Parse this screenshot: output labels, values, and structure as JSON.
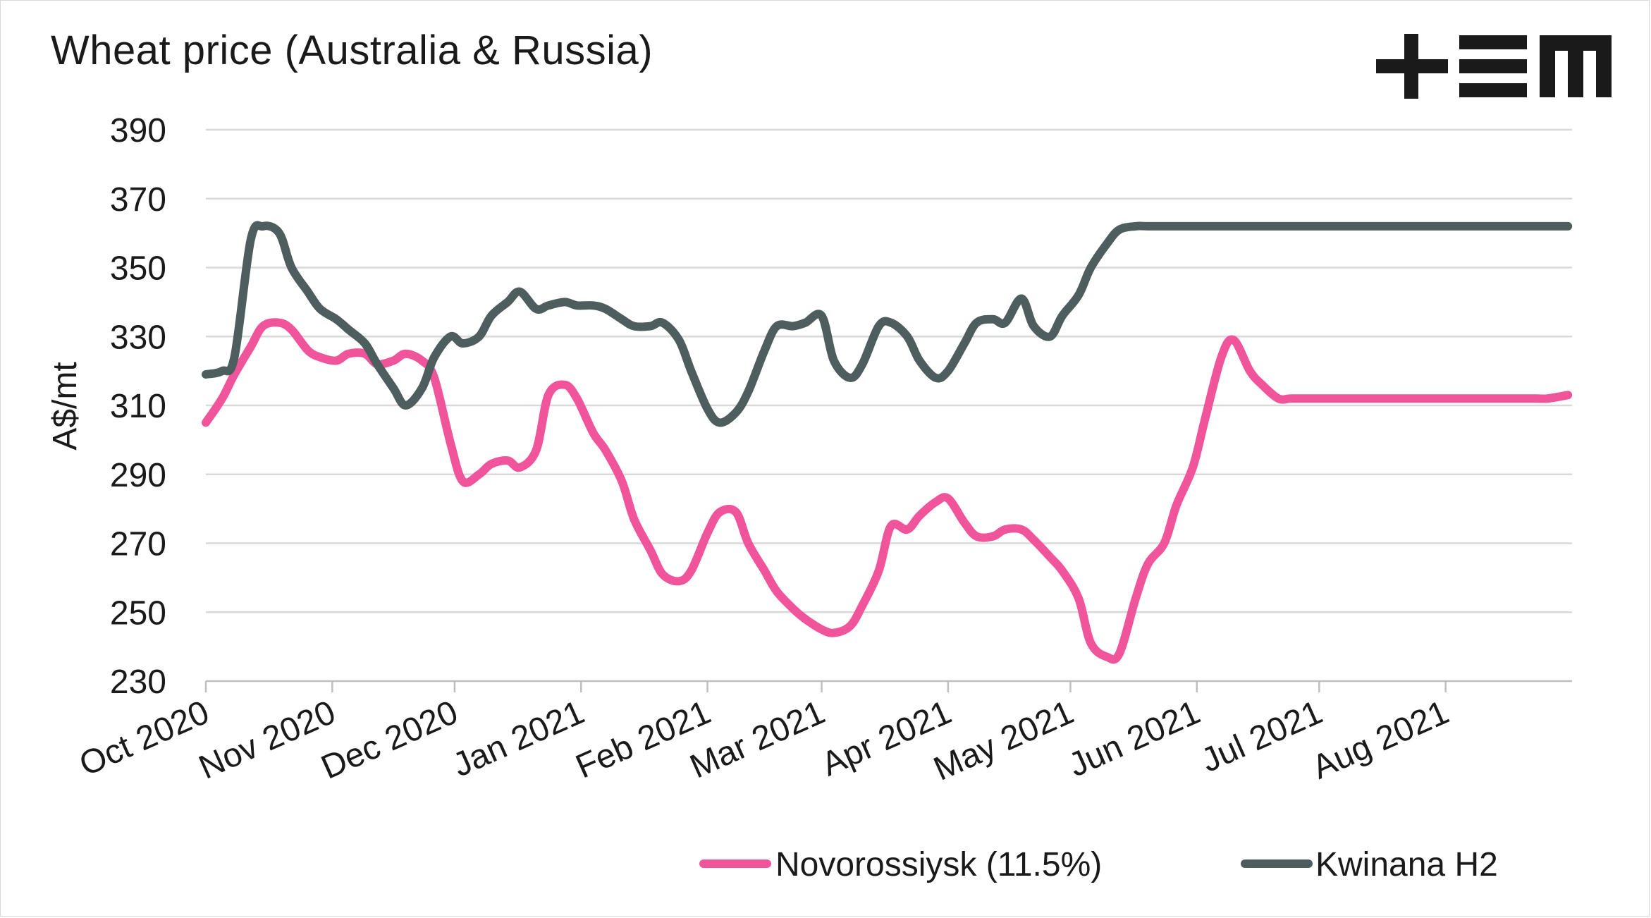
{
  "title": "Wheat price (Australia & Russia)",
  "logo": {
    "name": "tem-logo",
    "color": "#1a1a1a"
  },
  "colors": {
    "novo": "#f0559c",
    "kwinana": "#4e5d5e",
    "grid": "#d9d9d9",
    "axis": "#bfbfbf",
    "text": "#1a1a1a"
  },
  "chart_data": {
    "type": "line",
    "title": "Wheat price (Australia & Russia)",
    "xlabel": "",
    "ylabel": "A$/mt",
    "ylim": [
      230,
      390
    ],
    "yticks": [
      230,
      250,
      270,
      290,
      310,
      330,
      350,
      370,
      390
    ],
    "xlim": [
      "2020-10-01",
      "2021-09-01"
    ],
    "xtick_labels": [
      "Oct 2020",
      "Nov 2020",
      "Dec 2020",
      "Jan 2021",
      "Feb 2021",
      "Mar 2021",
      "Apr 2021",
      "May 2021",
      "Jun 2021",
      "Jul 2021",
      "Aug 2021"
    ],
    "xtick_dates": [
      "2020-10-01",
      "2020-11-01",
      "2020-12-01",
      "2021-01-01",
      "2021-02-01",
      "2021-03-01",
      "2021-04-01",
      "2021-05-01",
      "2021-06-01",
      "2021-07-01",
      "2021-08-01"
    ],
    "grid": true,
    "legend_position": "bottom",
    "x": [
      "2020-10-01",
      "2020-10-05",
      "2020-10-08",
      "2020-10-12",
      "2020-10-15",
      "2020-10-19",
      "2020-10-22",
      "2020-10-26",
      "2020-10-29",
      "2020-11-02",
      "2020-11-05",
      "2020-11-09",
      "2020-11-12",
      "2020-11-16",
      "2020-11-19",
      "2020-11-23",
      "2020-11-26",
      "2020-11-30",
      "2020-12-03",
      "2020-12-07",
      "2020-12-10",
      "2020-12-14",
      "2020-12-17",
      "2020-12-21",
      "2020-12-24",
      "2020-12-28",
      "2020-12-31",
      "2021-01-04",
      "2021-01-07",
      "2021-01-11",
      "2021-01-14",
      "2021-01-18",
      "2021-01-21",
      "2021-01-25",
      "2021-01-28",
      "2021-02-01",
      "2021-02-04",
      "2021-02-08",
      "2021-02-11",
      "2021-02-15",
      "2021-02-18",
      "2021-02-22",
      "2021-02-25",
      "2021-03-01",
      "2021-03-04",
      "2021-03-08",
      "2021-03-11",
      "2021-03-15",
      "2021-03-18",
      "2021-03-22",
      "2021-03-25",
      "2021-03-29",
      "2021-04-01",
      "2021-04-05",
      "2021-04-08",
      "2021-04-12",
      "2021-04-15",
      "2021-04-19",
      "2021-04-22",
      "2021-04-26",
      "2021-04-29",
      "2021-05-03",
      "2021-05-06",
      "2021-05-10",
      "2021-05-13",
      "2021-05-17",
      "2021-05-20",
      "2021-05-24",
      "2021-05-27",
      "2021-05-31",
      "2021-06-03",
      "2021-06-07",
      "2021-06-10",
      "2021-06-14",
      "2021-06-17",
      "2021-06-21",
      "2021-06-24",
      "2021-06-28",
      "2021-07-01",
      "2021-07-05",
      "2021-07-08",
      "2021-07-12",
      "2021-07-15",
      "2021-07-19",
      "2021-07-22",
      "2021-07-26",
      "2021-07-29",
      "2021-08-02",
      "2021-08-05",
      "2021-08-09",
      "2021-08-12",
      "2021-08-16",
      "2021-08-19",
      "2021-08-23",
      "2021-08-26",
      "2021-08-31"
    ],
    "series": [
      {
        "name": "Novorossiysk (11.5%)",
        "color": "#f0559c",
        "values": [
          305,
          312,
          319,
          327,
          333,
          334,
          332,
          326,
          324,
          323,
          325,
          325,
          322,
          323,
          325,
          323,
          318,
          299,
          288,
          290,
          293,
          294,
          292,
          297,
          313,
          316,
          312,
          302,
          297,
          288,
          277,
          268,
          261,
          259,
          262,
          273,
          279,
          279,
          270,
          262,
          256,
          251,
          248,
          245,
          244,
          246,
          252,
          262,
          275,
          274,
          278,
          282,
          283,
          276,
          272,
          272,
          274,
          274,
          271,
          266,
          262,
          254,
          241,
          237,
          238,
          254,
          264,
          270,
          281,
          292,
          306,
          324,
          329,
          320,
          316,
          312,
          312,
          312,
          312,
          312,
          312,
          312,
          312,
          312,
          312,
          312,
          312,
          312,
          312,
          312,
          312,
          312,
          312,
          312,
          312,
          313
        ]
      },
      {
        "name": "Kwinana H2",
        "color": "#4e5d5e",
        "values": [
          319,
          320,
          324,
          358,
          362,
          360,
          350,
          343,
          338,
          335,
          332,
          328,
          322,
          315,
          310,
          315,
          324,
          330,
          328,
          330,
          336,
          340,
          343,
          338,
          339,
          340,
          339,
          339,
          338,
          335,
          333,
          333,
          334,
          329,
          320,
          309,
          305,
          308,
          314,
          326,
          333,
          333,
          334,
          336,
          323,
          318,
          322,
          333,
          334,
          330,
          323,
          318,
          320,
          328,
          334,
          335,
          334,
          341,
          333,
          330,
          336,
          342,
          350,
          357,
          361,
          362,
          362,
          362,
          362,
          362,
          362,
          362,
          362,
          362,
          362,
          362,
          362,
          362,
          362,
          362,
          362,
          362,
          362,
          362,
          362,
          362,
          362,
          362,
          362,
          362,
          362,
          362,
          362,
          362,
          362,
          362
        ]
      }
    ]
  }
}
